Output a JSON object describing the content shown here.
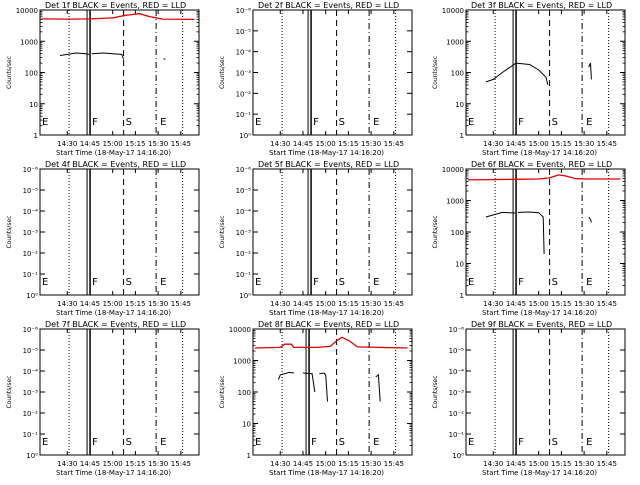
{
  "x_ticks": [
    "14:30",
    "14:45",
    "15:00",
    "15:15",
    "15:30",
    "15:45"
  ],
  "x_tick_times": [
    14.5,
    14.75,
    15.0,
    15.25,
    15.5,
    15.75
  ],
  "x_range": [
    14.2,
    15.95
  ],
  "xlabel": "Start Time (18-May-17 14:16:20)",
  "ylabel": "Counts/sec",
  "y_ticks_decades": [
    "1",
    "10",
    "100",
    "1000",
    "10000"
  ],
  "y_ticks_sci": [
    "10⁰",
    "10⁻¹",
    "10⁻²",
    "10⁻³",
    "10⁻⁴",
    "10⁻⁵",
    "10⁻⁶"
  ],
  "colors": {
    "events": "#000000",
    "lld": "#dd0000"
  },
  "chart_data": [
    {
      "type": "line",
      "title": "Det 1f BLACK = Events, RED = LLD",
      "scale": "log",
      "ylim": [
        1,
        10000
      ],
      "markers": [
        {
          "label": "F",
          "x": 14.74
        },
        {
          "label": "S",
          "x": 15.12
        },
        {
          "label": "E",
          "x": 15.5
        }
      ],
      "series": [
        {
          "name": "Events",
          "segments": [
            [
              [
                14.42,
                350
              ],
              [
                14.5,
                380
              ],
              [
                14.6,
                420
              ],
              [
                14.7,
                400
              ],
              [
                14.74,
                380
              ]
            ],
            [
              [
                14.77,
                400
              ],
              [
                14.9,
                420
              ],
              [
                15.0,
                400
              ],
              [
                15.1,
                380
              ],
              [
                15.12,
                260
              ]
            ],
            [
              [
                15.56,
                280
              ],
              [
                15.58,
                260
              ]
            ]
          ]
        },
        {
          "name": "LLD",
          "segments": [
            [
              [
                14.22,
                5200
              ],
              [
                14.5,
                5100
              ],
              [
                14.75,
                5200
              ],
              [
                15.0,
                5600
              ],
              [
                15.15,
                6800
              ],
              [
                15.3,
                7600
              ],
              [
                15.4,
                6200
              ],
              [
                15.55,
                5100
              ],
              [
                15.9,
                5000
              ]
            ]
          ]
        }
      ]
    },
    {
      "type": "line",
      "title": "Det 2f BLACK = Events, RED = LLD",
      "scale": "sci",
      "ylim": [
        1,
        1e-06
      ],
      "markers": [
        {
          "label": "F",
          "x": 14.74
        },
        {
          "label": "S",
          "x": 15.12
        },
        {
          "label": "E",
          "x": 15.5
        }
      ],
      "series": []
    },
    {
      "type": "line",
      "title": "Det 3f BLACK = Events, RED = LLD",
      "scale": "log",
      "ylim": [
        1,
        10000
      ],
      "markers": [
        {
          "label": "F",
          "x": 14.74
        },
        {
          "label": "S",
          "x": 15.12
        },
        {
          "label": "E",
          "x": 15.5
        }
      ],
      "series": [
        {
          "name": "Events",
          "segments": [
            [
              [
                14.42,
                50
              ],
              [
                14.5,
                60
              ],
              [
                14.6,
                100
              ],
              [
                14.75,
                200
              ],
              [
                14.9,
                180
              ],
              [
                15.0,
                120
              ],
              [
                15.08,
                70
              ],
              [
                15.1,
                40
              ]
            ],
            [
              [
                15.55,
                150
              ],
              [
                15.57,
                200
              ],
              [
                15.58,
                60
              ]
            ]
          ]
        }
      ]
    },
    {
      "type": "line",
      "title": "Det 4f BLACK = Events, RED = LLD",
      "scale": "sci",
      "ylim": [
        1,
        1e-06
      ],
      "markers": [
        {
          "label": "F",
          "x": 14.74
        },
        {
          "label": "S",
          "x": 15.12
        },
        {
          "label": "E",
          "x": 15.5
        }
      ],
      "series": []
    },
    {
      "type": "line",
      "title": "Det 5f BLACK = Events, RED = LLD",
      "scale": "sci",
      "ylim": [
        1,
        1e-06
      ],
      "markers": [
        {
          "label": "F",
          "x": 14.74
        },
        {
          "label": "S",
          "x": 15.12
        },
        {
          "label": "E",
          "x": 15.5
        }
      ],
      "series": []
    },
    {
      "type": "line",
      "title": "Det 6f BLACK = Events, RED = LLD",
      "scale": "log",
      "ylim": [
        1,
        10000
      ],
      "markers": [
        {
          "label": "F",
          "x": 14.74
        },
        {
          "label": "S",
          "x": 15.12
        },
        {
          "label": "E",
          "x": 15.5
        }
      ],
      "series": [
        {
          "name": "Events",
          "segments": [
            [
              [
                14.42,
                300
              ],
              [
                14.5,
                350
              ],
              [
                14.6,
                420
              ],
              [
                14.74,
                400
              ]
            ],
            [
              [
                14.77,
                420
              ],
              [
                14.9,
                430
              ],
              [
                15.0,
                410
              ],
              [
                15.05,
                300
              ],
              [
                15.06,
                20
              ]
            ],
            [
              [
                15.55,
                300
              ],
              [
                15.57,
                250
              ],
              [
                15.58,
                200
              ]
            ]
          ]
        },
        {
          "name": "LLD",
          "segments": [
            [
              [
                14.22,
                4500
              ],
              [
                14.5,
                4600
              ],
              [
                14.75,
                4700
              ],
              [
                15.0,
                4800
              ],
              [
                15.12,
                5200
              ],
              [
                15.22,
                6500
              ],
              [
                15.3,
                6000
              ],
              [
                15.4,
                5000
              ],
              [
                15.5,
                4800
              ],
              [
                15.9,
                4800
              ]
            ]
          ]
        }
      ]
    },
    {
      "type": "line",
      "title": "Det 7f BLACK = Events, RED = LLD",
      "scale": "sci",
      "ylim": [
        1,
        1e-06
      ],
      "markers": [
        {
          "label": "F",
          "x": 14.74
        },
        {
          "label": "S",
          "x": 15.12
        },
        {
          "label": "E",
          "x": 15.5
        }
      ],
      "series": []
    },
    {
      "type": "line",
      "title": "Det 8f BLACK = Events, RED = LLD",
      "scale": "log",
      "ylim": [
        1,
        10000
      ],
      "markers": [
        {
          "label": "F",
          "x": 14.74
        },
        {
          "label": "S",
          "x": 15.12
        },
        {
          "label": "E",
          "x": 15.5
        }
      ],
      "series": [
        {
          "name": "Events",
          "segments": [
            [
              [
                14.48,
                250
              ],
              [
                14.5,
                350
              ],
              [
                14.6,
                420
              ],
              [
                14.65,
                400
              ]
            ],
            [
              [
                14.75,
                400
              ],
              [
                14.85,
                380
              ],
              [
                14.88,
                100
              ]
            ],
            [
              [
                14.93,
                380
              ],
              [
                14.98,
                400
              ],
              [
                15.0,
                350
              ],
              [
                15.02,
                50
              ]
            ],
            [
              [
                15.55,
                300
              ],
              [
                15.58,
                350
              ],
              [
                15.6,
                50
              ]
            ]
          ]
        },
        {
          "name": "LLD",
          "segments": [
            [
              [
                14.22,
                2500
              ],
              [
                14.5,
                2600
              ],
              [
                14.55,
                3300
              ],
              [
                14.62,
                3300
              ],
              [
                14.65,
                2600
              ],
              [
                14.9,
                2600
              ],
              [
                15.05,
                2800
              ],
              [
                15.12,
                4200
              ],
              [
                15.18,
                5500
              ],
              [
                15.26,
                4200
              ],
              [
                15.35,
                2700
              ],
              [
                15.6,
                2600
              ],
              [
                15.9,
                2500
              ]
            ]
          ]
        }
      ]
    },
    {
      "type": "line",
      "title": "Det 9f BLACK = Events, RED = LLD",
      "scale": "sci",
      "ylim": [
        1,
        1e-06
      ],
      "markers": [
        {
          "label": "F",
          "x": 14.74
        },
        {
          "label": "S",
          "x": 15.12
        },
        {
          "label": "E",
          "x": 15.5
        }
      ],
      "series": []
    }
  ]
}
